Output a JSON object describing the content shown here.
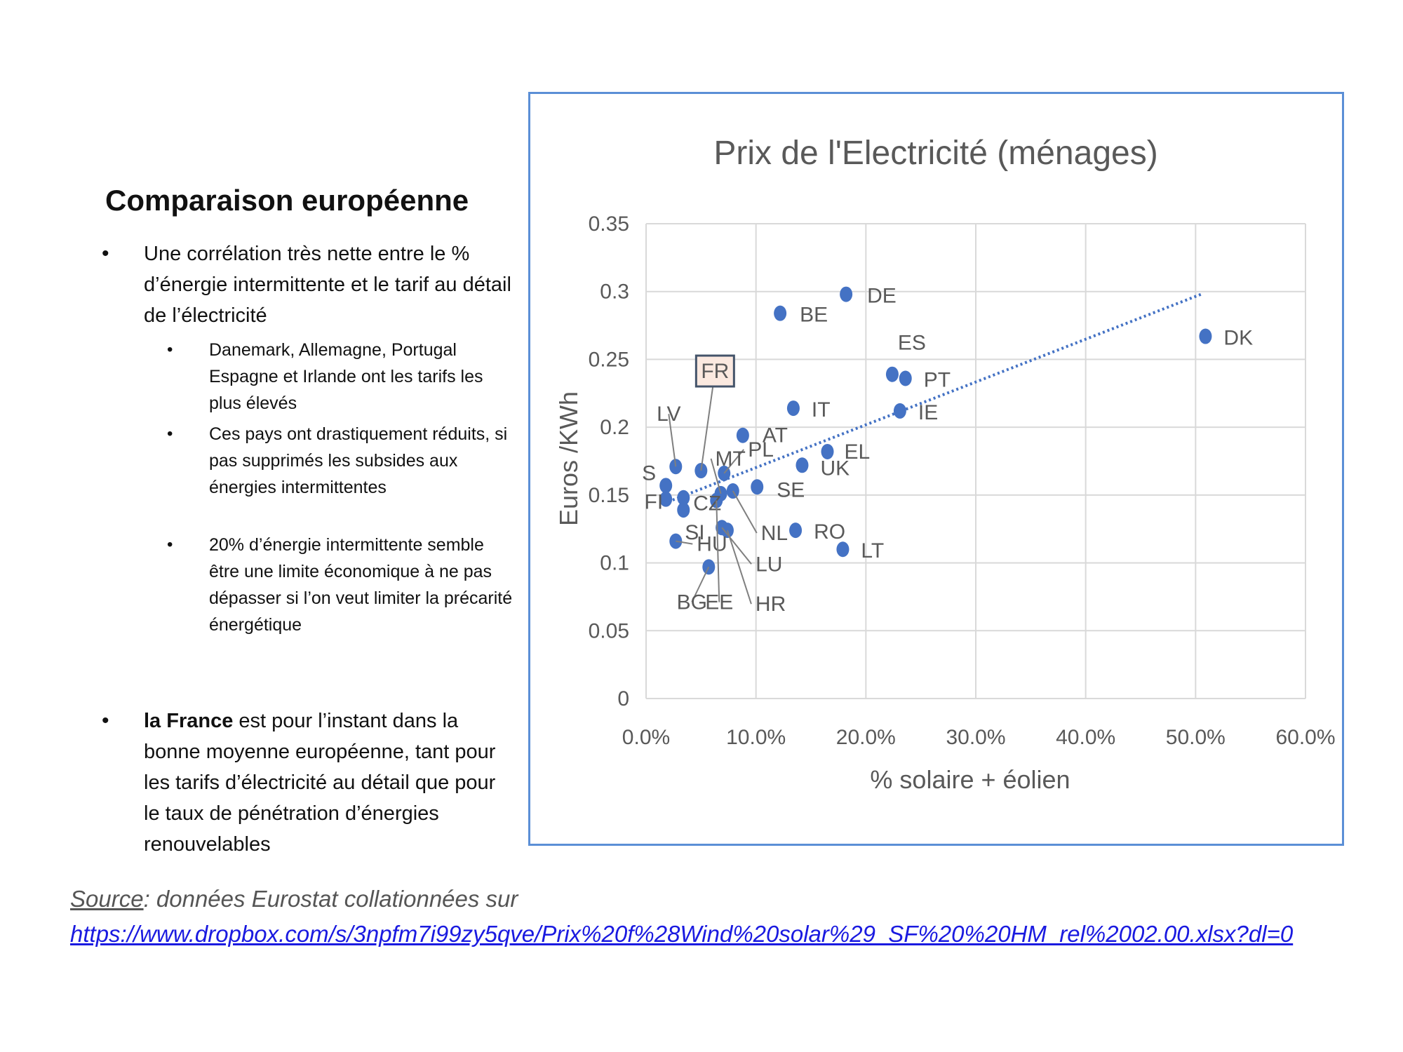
{
  "left": {
    "title": "Comparaison européenne",
    "bullets": [
      {
        "text": "Une corrélation très nette entre le % d’énergie intermittente et le tarif au détail de l’électricité"
      },
      {
        "text": "Danemark, Allemagne, Portugal Espagne et Irlande ont les tarifs les plus élevés",
        "sub": true
      },
      {
        "text": "Ces pays ont drastiquement réduits, si pas supprimés les subsides aux énergies intermittentes",
        "sub": true
      },
      {
        "text": "20% d’énergie intermittente semble être une limite économique à ne pas dépasser si l’on veut limiter la précarité énergétique",
        "sub": true
      }
    ],
    "france_bullet": {
      "bold": "la France",
      "rest": " est pour l’instant dans la bonne moyenne européenne, tant pour les tarifs d’électricité au détail que pour le taux de pénétration d’énergies renouvelables"
    },
    "bullet_glyph": "•"
  },
  "source": {
    "label": "Source",
    "text": ": données Eurostat collationnées sur",
    "url": "https://www.dropbox.com/s/3npfm7i99zy5qve/Prix%20f%28Wind%20solar%29_SF%20%20HM_rel%2002.00.xlsx?dl=0"
  },
  "colors": {
    "point": "#4472c4",
    "trend": "#4472c4",
    "frame": "#5b8fd6",
    "text": "#595959",
    "fr_box": "#fbe9e0"
  },
  "chart_data": {
    "type": "scatter",
    "title": "Prix de l'Electricité (ménages)",
    "xlabel": "% solaire + éolien",
    "ylabel": "Euros /KWh",
    "xlim": [
      0,
      0.6
    ],
    "ylim": [
      0,
      0.35
    ],
    "xticks": [
      "0.0%",
      "10.0%",
      "20.0%",
      "30.0%",
      "40.0%",
      "50.0%",
      "60.0%"
    ],
    "yticks": [
      "0",
      "0.05",
      "0.1",
      "0.15",
      "0.2",
      "0.25",
      "0.3",
      "0.35"
    ],
    "grid": true,
    "points": [
      {
        "label": "DE",
        "x": 0.182,
        "y": 0.298
      },
      {
        "label": "BE",
        "x": 0.122,
        "y": 0.284
      },
      {
        "label": "DK",
        "x": 0.509,
        "y": 0.267
      },
      {
        "label": "ES",
        "x": 0.224,
        "y": 0.239
      },
      {
        "label": "PT",
        "x": 0.236,
        "y": 0.236
      },
      {
        "label": "IE",
        "x": 0.231,
        "y": 0.212
      },
      {
        "label": "IT",
        "x": 0.134,
        "y": 0.214
      },
      {
        "label": "AT",
        "x": 0.088,
        "y": 0.194
      },
      {
        "label": "EL",
        "x": 0.165,
        "y": 0.182
      },
      {
        "label": "UK",
        "x": 0.142,
        "y": 0.172
      },
      {
        "label": "PL",
        "x": 0.071,
        "y": 0.166
      },
      {
        "label": "FR",
        "x": 0.05,
        "y": 0.168
      },
      {
        "label": "LV",
        "x": 0.027,
        "y": 0.171
      },
      {
        "label": "SE",
        "x": 0.101,
        "y": 0.156
      },
      {
        "label": "MT",
        "x": 0.068,
        "y": 0.151
      },
      {
        "label": "NL",
        "x": 0.079,
        "y": 0.153
      },
      {
        "label": "S",
        "x": 0.018,
        "y": 0.157
      },
      {
        "label": "CZ",
        "x": 0.034,
        "y": 0.148
      },
      {
        "label": "FI",
        "x": 0.018,
        "y": 0.147
      },
      {
        "label": "SI",
        "x": 0.034,
        "y": 0.139
      },
      {
        "label": "HU",
        "x": 0.027,
        "y": 0.116
      },
      {
        "label": "LU",
        "x": 0.069,
        "y": 0.126
      },
      {
        "label": "HR",
        "x": 0.074,
        "y": 0.124
      },
      {
        "label": "RO",
        "x": 0.136,
        "y": 0.124
      },
      {
        "label": "LT",
        "x": 0.179,
        "y": 0.11
      },
      {
        "label": "BG",
        "x": 0.057,
        "y": 0.097
      },
      {
        "label": "EE",
        "x": 0.064,
        "y": 0.146
      }
    ],
    "trendline": {
      "x": [
        0.02,
        0.505
      ],
      "y": [
        0.145,
        0.298
      ],
      "style": "dotted"
    },
    "highlight_label": "FR"
  }
}
